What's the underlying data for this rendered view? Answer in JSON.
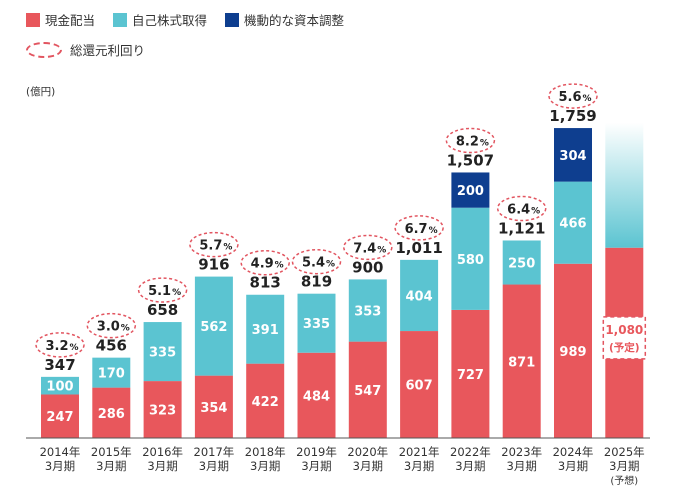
{
  "colors": {
    "cash": "#e8575c",
    "buyback": "#5bc4d1",
    "flexible": "#0e3e8f",
    "ring": "#e25560"
  },
  "legend": {
    "cash": "現金配当",
    "buyback": "自己株式取得",
    "flexible": "機動的な資本調整",
    "yield": "総還元利回り"
  },
  "chart_data": {
    "type": "bar",
    "stacked": true,
    "unit": "(億円)",
    "categories": [
      [
        "2014年",
        "3月期"
      ],
      [
        "2015年",
        "3月期"
      ],
      [
        "2016年",
        "3月期"
      ],
      [
        "2017年",
        "3月期"
      ],
      [
        "2018年",
        "3月期"
      ],
      [
        "2019年",
        "3月期"
      ],
      [
        "2020年",
        "3月期"
      ],
      [
        "2021年",
        "3月期"
      ],
      [
        "2022年",
        "3月期"
      ],
      [
        "2023年",
        "3月期"
      ],
      [
        "2024年",
        "3月期"
      ],
      [
        "2025年",
        "3月期",
        "(予想)"
      ]
    ],
    "series": [
      {
        "name": "現金配当",
        "values": [
          247,
          286,
          323,
          354,
          422,
          484,
          547,
          607,
          727,
          871,
          989,
          1080
        ]
      },
      {
        "name": "自己株式取得",
        "values": [
          100,
          170,
          335,
          562,
          391,
          335,
          353,
          404,
          580,
          250,
          466,
          null
        ]
      },
      {
        "name": "機動的な資本調整",
        "values": [
          0,
          0,
          0,
          0,
          0,
          0,
          0,
          0,
          200,
          0,
          304,
          null
        ]
      }
    ],
    "totals": [
      347,
      456,
      658,
      916,
      813,
      819,
      900,
      1011,
      1507,
      1121,
      1759,
      null
    ],
    "total_labels": [
      "347",
      "456",
      "658",
      "916",
      "813",
      "819",
      "900",
      "1,011",
      "1,507",
      "1,121",
      "1,759",
      ""
    ],
    "yield": [
      "3.2",
      "3.0",
      "5.1",
      "5.7",
      "4.9",
      "5.4",
      "7.4",
      "6.7",
      "8.2",
      "6.4",
      "5.6",
      null
    ],
    "yield_unit": "%",
    "forecast": {
      "label": "1,080",
      "note": "(予定)"
    },
    "ylim": [
      0,
      1800
    ],
    "grid": false,
    "legend_position": "top-left"
  }
}
